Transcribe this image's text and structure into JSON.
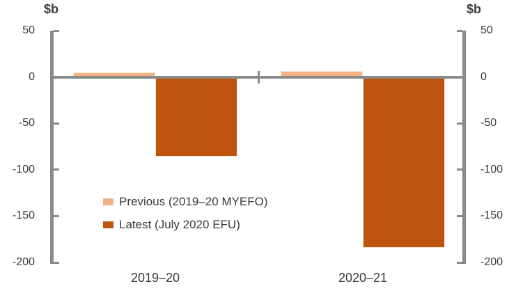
{
  "chart_data": {
    "type": "bar",
    "title": "",
    "categories": [
      "2019–20",
      "2020–21"
    ],
    "series": [
      {
        "name": "Previous (2019–20 MYEFO)",
        "slug": "previous",
        "color": "#F4B183",
        "values": [
          5.0,
          6.1
        ]
      },
      {
        "name": "Latest (July 2020 EFU)",
        "slug": "latest",
        "color": "#BF540F",
        "values": [
          -85.8,
          -184.5
        ]
      }
    ],
    "xlabel": "",
    "ylabel": "$b",
    "ylabel_right": "$b",
    "ylim": [
      -200,
      50
    ],
    "y_ticks": [
      50,
      0,
      -50,
      -100,
      -150,
      -200
    ],
    "grid": false,
    "legend_position": "inside-left",
    "axis_color": "#8A8A8A",
    "text_color": "#3A3A3A",
    "bar_outline_color": "#F7E8DA"
  }
}
